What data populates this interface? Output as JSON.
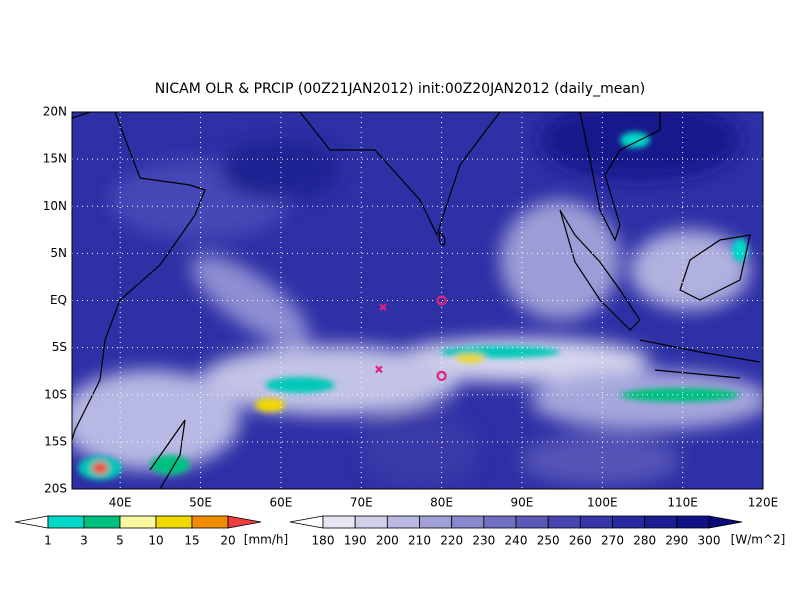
{
  "title": "NICAM OLR & PRCIP (00Z21JAN2012) init:00Z20JAN2012 (daily_mean)",
  "map": {
    "xlim": [
      34,
      120
    ],
    "ylim": [
      -20,
      20
    ],
    "xticks": [
      {
        "value": 40,
        "label": "40E"
      },
      {
        "value": 50,
        "label": "50E"
      },
      {
        "value": 60,
        "label": "60E"
      },
      {
        "value": 70,
        "label": "70E"
      },
      {
        "value": 80,
        "label": "80E"
      },
      {
        "value": 90,
        "label": "90E"
      },
      {
        "value": 100,
        "label": "100E"
      },
      {
        "value": 110,
        "label": "110E"
      },
      {
        "value": 120,
        "label": "120E"
      }
    ],
    "yticks": [
      {
        "value": 20,
        "label": "20N"
      },
      {
        "value": 15,
        "label": "15N"
      },
      {
        "value": 10,
        "label": "10N"
      },
      {
        "value": 5,
        "label": "5N"
      },
      {
        "value": 0,
        "label": "EQ"
      },
      {
        "value": -5,
        "label": "5S"
      },
      {
        "value": -10,
        "label": "10S"
      },
      {
        "value": -15,
        "label": "15S"
      },
      {
        "value": -20,
        "label": "20S"
      }
    ],
    "grid": true,
    "markers": [
      {
        "symbol": "x",
        "lon": 72.7,
        "lat": -0.7,
        "color": "#e0207a"
      },
      {
        "symbol": "x",
        "lon": 72.2,
        "lat": -7.3,
        "color": "#e0207a"
      },
      {
        "symbol": "o",
        "lon": 80,
        "lat": 0,
        "color": "#e0207a"
      },
      {
        "symbol": "o",
        "lon": 80,
        "lat": -8,
        "color": "#e0207a"
      }
    ]
  },
  "precip_colorbar": {
    "levels": [
      1,
      3,
      5,
      10,
      15,
      20
    ],
    "colors": [
      "#ffffff",
      "#00d8c8",
      "#00c080",
      "#f8f8a0",
      "#f0d800",
      "#f08c00",
      "#f03c3c"
    ],
    "unit": "[mm/h]"
  },
  "olr_colorbar": {
    "levels": [
      180,
      190,
      200,
      210,
      220,
      230,
      240,
      250,
      260,
      270,
      280,
      290,
      300
    ],
    "colors": [
      "#ffffff",
      "#e6e6f2",
      "#d0d0ea",
      "#b8b8e0",
      "#a0a0d6",
      "#8888cc",
      "#7070c2",
      "#5a5ab8",
      "#4646b0",
      "#3636a8",
      "#2828a0",
      "#1c1c94",
      "#121288",
      "#0a0a78"
    ],
    "unit": "[W/m^2]"
  }
}
